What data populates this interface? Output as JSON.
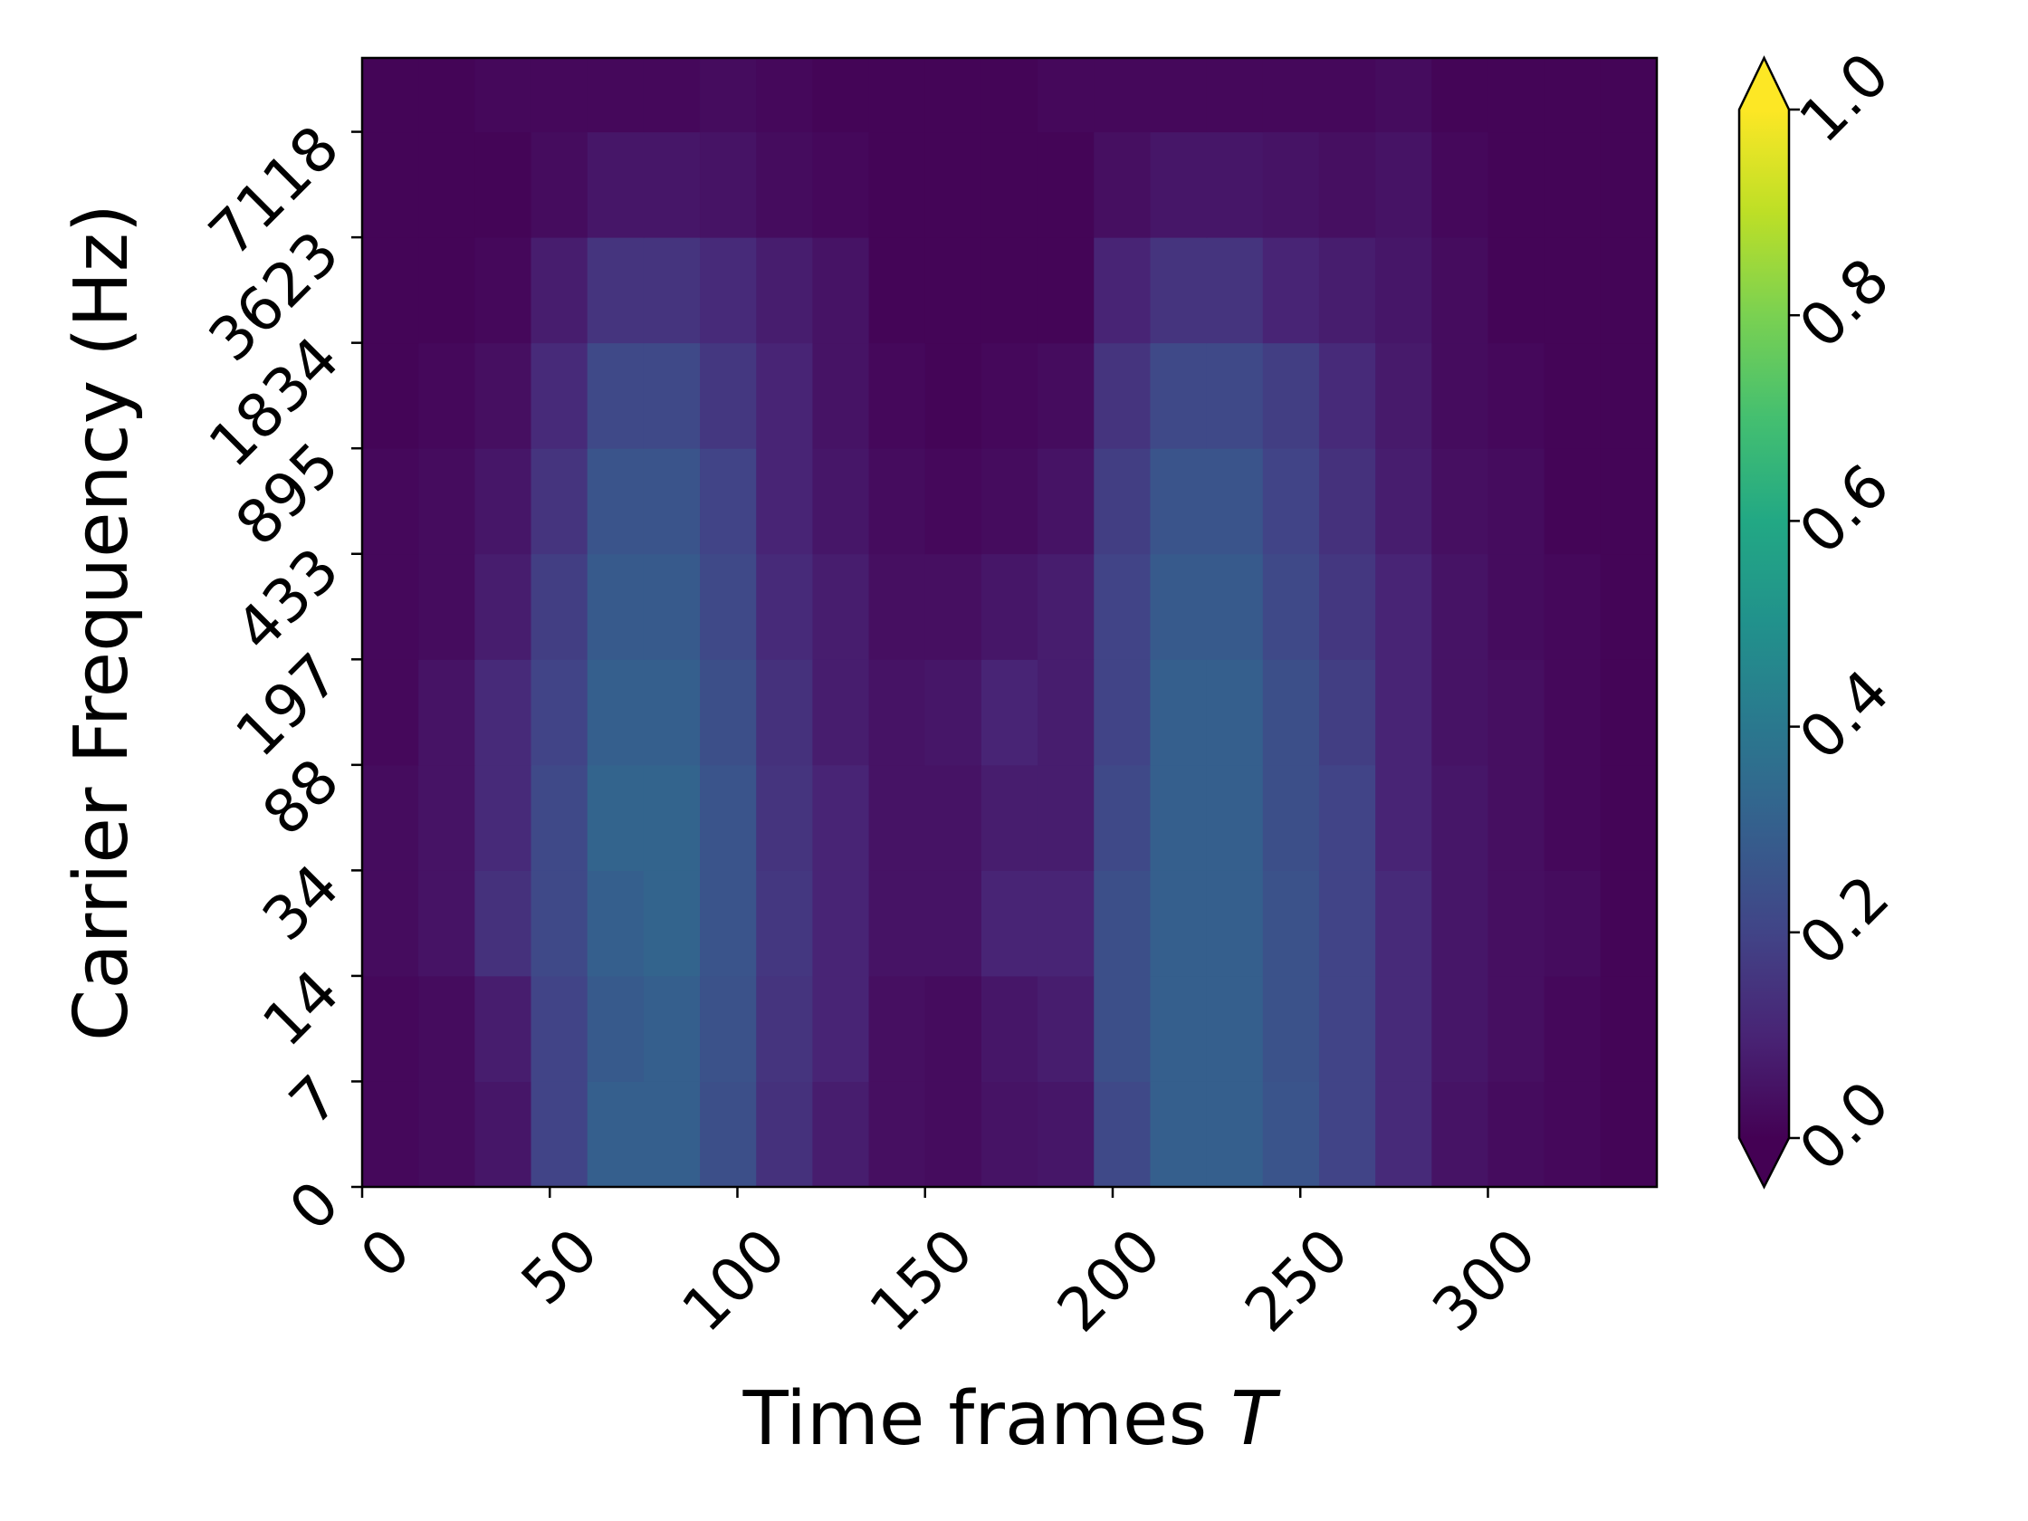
{
  "chart_data": {
    "type": "heatmap",
    "xlabel": "Time frames T",
    "ylabel": "Carrier Frequency (Hz)",
    "xlim": [
      0,
      345
    ],
    "xticks": [
      0,
      50,
      100,
      150,
      200,
      250,
      300
    ],
    "ylim": [
      0,
      53.5
    ],
    "yticks": [
      0,
      {
        "value": 5,
        "label": "7"
      },
      {
        "value": 10,
        "label": "14"
      },
      {
        "value": 15,
        "label": "34"
      },
      {
        "value": 20,
        "label": "88"
      },
      {
        "value": 25,
        "label": "197"
      },
      {
        "value": 30,
        "label": "433"
      },
      {
        "value": 35,
        "label": "895"
      },
      {
        "value": 40,
        "label": "1834"
      },
      {
        "value": 45,
        "label": "3623"
      },
      {
        "value": 50,
        "label": "7118"
      }
    ],
    "xbins": [
      0,
      15,
      30,
      45,
      60,
      75,
      90,
      105,
      120,
      135,
      150,
      165,
      180,
      195,
      210,
      225,
      240,
      255,
      270,
      285,
      300,
      315,
      330,
      345
    ],
    "ybins": [
      0,
      5,
      10,
      15,
      20,
      25,
      30,
      35,
      40,
      45,
      50,
      53.5
    ],
    "z": [
      [
        0.02,
        0.03,
        0.06,
        0.2,
        0.3,
        0.3,
        0.24,
        0.14,
        0.08,
        0.04,
        0.03,
        0.05,
        0.06,
        0.22,
        0.3,
        0.3,
        0.26,
        0.2,
        0.12,
        0.05,
        0.03,
        0.02,
        0.01
      ],
      [
        0.02,
        0.03,
        0.08,
        0.2,
        0.28,
        0.3,
        0.25,
        0.15,
        0.1,
        0.04,
        0.03,
        0.06,
        0.08,
        0.24,
        0.3,
        0.3,
        0.25,
        0.2,
        0.12,
        0.06,
        0.04,
        0.02,
        0.01
      ],
      [
        0.03,
        0.05,
        0.14,
        0.22,
        0.3,
        0.32,
        0.26,
        0.16,
        0.1,
        0.05,
        0.05,
        0.1,
        0.1,
        0.24,
        0.3,
        0.3,
        0.25,
        0.2,
        0.12,
        0.06,
        0.04,
        0.03,
        0.01
      ],
      [
        0.03,
        0.05,
        0.12,
        0.22,
        0.32,
        0.32,
        0.26,
        0.15,
        0.1,
        0.05,
        0.05,
        0.08,
        0.08,
        0.22,
        0.3,
        0.3,
        0.24,
        0.2,
        0.1,
        0.06,
        0.04,
        0.02,
        0.01
      ],
      [
        0.02,
        0.05,
        0.12,
        0.2,
        0.3,
        0.3,
        0.24,
        0.14,
        0.08,
        0.05,
        0.06,
        0.1,
        0.08,
        0.2,
        0.3,
        0.3,
        0.24,
        0.18,
        0.1,
        0.05,
        0.04,
        0.02,
        0.01
      ],
      [
        0.02,
        0.03,
        0.08,
        0.18,
        0.28,
        0.28,
        0.22,
        0.12,
        0.08,
        0.04,
        0.04,
        0.06,
        0.08,
        0.2,
        0.28,
        0.28,
        0.22,
        0.16,
        0.1,
        0.05,
        0.03,
        0.02,
        0.01
      ],
      [
        0.02,
        0.03,
        0.06,
        0.15,
        0.26,
        0.26,
        0.2,
        0.1,
        0.06,
        0.03,
        0.02,
        0.03,
        0.05,
        0.18,
        0.26,
        0.26,
        0.2,
        0.14,
        0.08,
        0.04,
        0.03,
        0.01,
        0.01
      ],
      [
        0.01,
        0.02,
        0.04,
        0.12,
        0.22,
        0.22,
        0.16,
        0.1,
        0.05,
        0.02,
        0.01,
        0.02,
        0.03,
        0.15,
        0.22,
        0.22,
        0.18,
        0.12,
        0.07,
        0.03,
        0.02,
        0.01,
        0.01
      ],
      [
        0.01,
        0.01,
        0.02,
        0.08,
        0.15,
        0.15,
        0.12,
        0.08,
        0.05,
        0.01,
        0.01,
        0.01,
        0.01,
        0.1,
        0.15,
        0.15,
        0.1,
        0.08,
        0.06,
        0.03,
        0.01,
        0.01,
        0.01
      ],
      [
        0.01,
        0.01,
        0.01,
        0.03,
        0.06,
        0.06,
        0.05,
        0.03,
        0.02,
        0.01,
        0.01,
        0.01,
        0.01,
        0.04,
        0.06,
        0.06,
        0.05,
        0.04,
        0.05,
        0.02,
        0.01,
        0.01,
        0.01
      ],
      [
        0.01,
        0.01,
        0.02,
        0.02,
        0.02,
        0.02,
        0.03,
        0.02,
        0.01,
        0.01,
        0.01,
        0.01,
        0.02,
        0.02,
        0.02,
        0.02,
        0.02,
        0.02,
        0.03,
        0.01,
        0.01,
        0.01,
        0.01
      ]
    ],
    "colormap": "viridis",
    "clim": [
      0,
      1
    ],
    "cticks": [
      {
        "value": 0,
        "label": "0.0"
      },
      {
        "value": 0.2,
        "label": "0.2"
      },
      {
        "value": 0.4,
        "label": "0.4"
      },
      {
        "value": 0.6,
        "label": "0.6"
      },
      {
        "value": 0.8,
        "label": "0.8"
      },
      {
        "value": 1,
        "label": "1.0"
      }
    ],
    "colorbar_extend": "both"
  }
}
